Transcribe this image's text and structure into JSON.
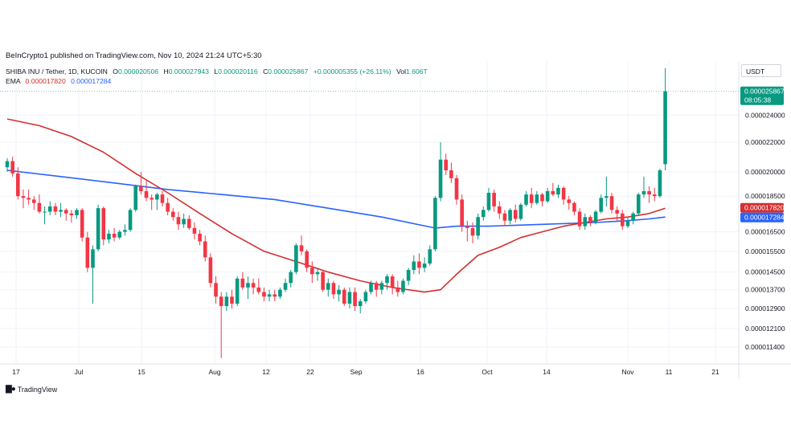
{
  "publisher_line": "BeInCrypto1 published on TradingView.com, Nov 10, 2024 21:24 UTC+5:30",
  "legend": {
    "symbol": "SHIBA INU / Tether, 1D, KUCOIN",
    "o_label": "O",
    "o_value": "0.000020506",
    "h_label": "H",
    "h_value": "0.000027943",
    "l_label": "L",
    "l_value": "0.000020116",
    "c_label": "C",
    "c_value": "0.000025867",
    "change": "+0.000005355 (+26.11%)",
    "vol_label": "Vol",
    "vol_value": "1.606T",
    "ema_label": "EMA",
    "ema1_value": "0.000017820",
    "ema2_value": "0.000017284"
  },
  "currency_label": "USDT",
  "price_tag": {
    "value": "0.000025867",
    "countdown": "08:05:38"
  },
  "ema_tags": {
    "ema1": "0.000017820",
    "ema2": "0.000017284"
  },
  "colors": {
    "up": "#089981",
    "down": "#f23645",
    "ema_fast": "#d32f2f",
    "ema_slow": "#2962ff",
    "grid": "#f0f3fa"
  },
  "logo_text": "TradingView",
  "chart_data": {
    "type": "candlestick",
    "x_ticks": [
      "17",
      "Jul",
      "15",
      "Aug",
      "12",
      "22",
      "Sep",
      "16",
      "Oct",
      "14",
      "Nov",
      "11",
      "21"
    ],
    "y_ticks": [
      "0.000024000",
      "0.000022000",
      "0.000020000",
      "0.000018500",
      "0.000016500",
      "0.000015500",
      "0.000014500",
      "0.000013700",
      "0.000012900",
      "0.000012100",
      "0.000011400"
    ],
    "log_scale": true,
    "grid": true,
    "series": [
      {
        "name": "SHIBA INU / Tether",
        "type": "candlestick",
        "values": [
          [
            2.03e-05,
            2.09e-05,
            2e-05,
            2.07e-05
          ],
          [
            2.07e-05,
            2.1e-05,
            1.97e-05,
            1.99e-05
          ],
          [
            1.99e-05,
            2.03e-05,
            1.83e-05,
            1.85e-05
          ],
          [
            1.85e-05,
            1.89e-05,
            1.78e-05,
            1.84e-05
          ],
          [
            1.84e-05,
            1.89e-05,
            1.8e-05,
            1.83e-05
          ],
          [
            1.83e-05,
            1.85e-05,
            1.77e-05,
            1.81e-05
          ],
          [
            1.81e-05,
            1.86e-05,
            1.75e-05,
            1.76e-05
          ],
          [
            1.76e-05,
            1.79e-05,
            1.69e-05,
            1.76e-05
          ],
          [
            1.76e-05,
            1.82e-05,
            1.74e-05,
            1.79e-05
          ],
          [
            1.79e-05,
            1.81e-05,
            1.74e-05,
            1.76e-05
          ],
          [
            1.76e-05,
            1.81e-05,
            1.73e-05,
            1.77e-05
          ],
          [
            1.77e-05,
            1.78e-05,
            1.71e-05,
            1.75e-05
          ],
          [
            1.75e-05,
            1.77e-05,
            1.7e-05,
            1.74e-05
          ],
          [
            1.74e-05,
            1.78e-05,
            1.72e-05,
            1.77e-05
          ],
          [
            1.77e-05,
            1.78e-05,
            1.6e-05,
            1.62e-05
          ],
          [
            1.62e-05,
            1.65e-05,
            1.45e-05,
            1.47e-05
          ],
          [
            1.47e-05,
            1.58e-05,
            1.31e-05,
            1.56e-05
          ],
          [
            1.56e-05,
            1.8e-05,
            1.55e-05,
            1.78e-05
          ],
          [
            1.78e-05,
            1.79e-05,
            1.58e-05,
            1.61e-05
          ],
          [
            1.61e-05,
            1.66e-05,
            1.59e-05,
            1.64e-05
          ],
          [
            1.64e-05,
            1.67e-05,
            1.6e-05,
            1.62e-05
          ],
          [
            1.62e-05,
            1.66e-05,
            1.61e-05,
            1.65e-05
          ],
          [
            1.65e-05,
            1.69e-05,
            1.63e-05,
            1.66e-05
          ],
          [
            1.66e-05,
            1.78e-05,
            1.65e-05,
            1.77e-05
          ],
          [
            1.77e-05,
            1.92e-05,
            1.76e-05,
            1.91e-05
          ],
          [
            1.91e-05,
            2e-05,
            1.86e-05,
            1.88e-05
          ],
          [
            1.88e-05,
            1.95e-05,
            1.82e-05,
            1.84e-05
          ],
          [
            1.84e-05,
            1.86e-05,
            1.77e-05,
            1.83e-05
          ],
          [
            1.83e-05,
            1.87e-05,
            1.77e-05,
            1.86e-05
          ],
          [
            1.86e-05,
            1.88e-05,
            1.79e-05,
            1.81e-05
          ],
          [
            1.81e-05,
            1.84e-05,
            1.74e-05,
            1.76e-05
          ],
          [
            1.76e-05,
            1.78e-05,
            1.71e-05,
            1.73e-05
          ],
          [
            1.73e-05,
            1.76e-05,
            1.66e-05,
            1.69e-05
          ],
          [
            1.69e-05,
            1.75e-05,
            1.67e-05,
            1.72e-05
          ],
          [
            1.72e-05,
            1.74e-05,
            1.66e-05,
            1.67e-05
          ],
          [
            1.67e-05,
            1.7e-05,
            1.61e-05,
            1.64e-05
          ],
          [
            1.64e-05,
            1.66e-05,
            1.58e-05,
            1.6e-05
          ],
          [
            1.6e-05,
            1.63e-05,
            1.5e-05,
            1.52e-05
          ],
          [
            1.52e-05,
            1.54e-05,
            1.38e-05,
            1.4e-05
          ],
          [
            1.4e-05,
            1.43e-05,
            1.31e-05,
            1.34e-05
          ],
          [
            1.34e-05,
            1.36e-05,
            1.1e-05,
            1.3e-05
          ],
          [
            1.3e-05,
            1.36e-05,
            1.28e-05,
            1.34e-05
          ],
          [
            1.34e-05,
            1.37e-05,
            1.29e-05,
            1.31e-05
          ],
          [
            1.31e-05,
            1.43e-05,
            1.3e-05,
            1.42e-05
          ],
          [
            1.42e-05,
            1.45e-05,
            1.37e-05,
            1.38e-05
          ],
          [
            1.38e-05,
            1.43e-05,
            1.33e-05,
            1.4e-05
          ],
          [
            1.4e-05,
            1.42e-05,
            1.35e-05,
            1.38e-05
          ],
          [
            1.38e-05,
            1.42e-05,
            1.35e-05,
            1.36e-05
          ],
          [
            1.36e-05,
            1.38e-05,
            1.32e-05,
            1.34e-05
          ],
          [
            1.34e-05,
            1.37e-05,
            1.32e-05,
            1.35e-05
          ],
          [
            1.35e-05,
            1.37e-05,
            1.32e-05,
            1.34e-05
          ],
          [
            1.34e-05,
            1.38e-05,
            1.33e-05,
            1.37e-05
          ],
          [
            1.37e-05,
            1.42e-05,
            1.36e-05,
            1.4e-05
          ],
          [
            1.4e-05,
            1.46e-05,
            1.38e-05,
            1.45e-05
          ],
          [
            1.45e-05,
            1.59e-05,
            1.44e-05,
            1.58e-05
          ],
          [
            1.58e-05,
            1.63e-05,
            1.53e-05,
            1.55e-05
          ],
          [
            1.55e-05,
            1.56e-05,
            1.45e-05,
            1.47e-05
          ],
          [
            1.47e-05,
            1.5e-05,
            1.4e-05,
            1.44e-05
          ],
          [
            1.44e-05,
            1.47e-05,
            1.41e-05,
            1.45e-05
          ],
          [
            1.45e-05,
            1.46e-05,
            1.36e-05,
            1.37e-05
          ],
          [
            1.37e-05,
            1.42e-05,
            1.34e-05,
            1.4e-05
          ],
          [
            1.4e-05,
            1.41e-05,
            1.33e-05,
            1.35e-05
          ],
          [
            1.35e-05,
            1.39e-05,
            1.32e-05,
            1.37e-05
          ],
          [
            1.37e-05,
            1.38e-05,
            1.3e-05,
            1.31e-05
          ],
          [
            1.31e-05,
            1.38e-05,
            1.29e-05,
            1.36e-05
          ],
          [
            1.36e-05,
            1.38e-05,
            1.28e-05,
            1.3e-05
          ],
          [
            1.3e-05,
            1.33e-05,
            1.27e-05,
            1.32e-05
          ],
          [
            1.32e-05,
            1.37e-05,
            1.31e-05,
            1.36e-05
          ],
          [
            1.36e-05,
            1.41e-05,
            1.35e-05,
            1.4e-05
          ],
          [
            1.4e-05,
            1.41e-05,
            1.34e-05,
            1.37e-05
          ],
          [
            1.37e-05,
            1.41e-05,
            1.35e-05,
            1.4e-05
          ],
          [
            1.4e-05,
            1.44e-05,
            1.37e-05,
            1.43e-05
          ],
          [
            1.43e-05,
            1.44e-05,
            1.35e-05,
            1.38e-05
          ],
          [
            1.38e-05,
            1.41e-05,
            1.34e-05,
            1.36e-05
          ],
          [
            1.36e-05,
            1.42e-05,
            1.35e-05,
            1.41e-05
          ],
          [
            1.41e-05,
            1.47e-05,
            1.39e-05,
            1.46e-05
          ],
          [
            1.46e-05,
            1.53e-05,
            1.44e-05,
            1.5e-05
          ],
          [
            1.5e-05,
            1.54e-05,
            1.44e-05,
            1.47e-05
          ],
          [
            1.47e-05,
            1.52e-05,
            1.45e-05,
            1.49e-05
          ],
          [
            1.49e-05,
            1.58e-05,
            1.48e-05,
            1.56e-05
          ],
          [
            1.56e-05,
            1.85e-05,
            1.55e-05,
            1.84e-05
          ],
          [
            1.84e-05,
            2.2e-05,
            1.82e-05,
            2.08e-05
          ],
          [
            2.08e-05,
            2.12e-05,
            1.98e-05,
            2.01e-05
          ],
          [
            2.01e-05,
            2.06e-05,
            1.93e-05,
            1.96e-05
          ],
          [
            1.96e-05,
            1.98e-05,
            1.8e-05,
            1.83e-05
          ],
          [
            1.83e-05,
            1.86e-05,
            1.65e-05,
            1.68e-05
          ],
          [
            1.68e-05,
            1.71e-05,
            1.6e-05,
            1.67e-05
          ],
          [
            1.67e-05,
            1.7e-05,
            1.59e-05,
            1.63e-05
          ],
          [
            1.63e-05,
            1.75e-05,
            1.61e-05,
            1.73e-05
          ],
          [
            1.73e-05,
            1.79e-05,
            1.71e-05,
            1.77e-05
          ],
          [
            1.77e-05,
            1.9e-05,
            1.76e-05,
            1.87e-05
          ],
          [
            1.87e-05,
            1.89e-05,
            1.76e-05,
            1.79e-05
          ],
          [
            1.79e-05,
            1.82e-05,
            1.72e-05,
            1.75e-05
          ],
          [
            1.75e-05,
            1.77e-05,
            1.68e-05,
            1.71e-05
          ],
          [
            1.71e-05,
            1.78e-05,
            1.69e-05,
            1.77e-05
          ],
          [
            1.77e-05,
            1.8e-05,
            1.7e-05,
            1.72e-05
          ],
          [
            1.72e-05,
            1.81e-05,
            1.71e-05,
            1.8e-05
          ],
          [
            1.8e-05,
            1.88e-05,
            1.79e-05,
            1.86e-05
          ],
          [
            1.86e-05,
            1.9e-05,
            1.78e-05,
            1.81e-05
          ],
          [
            1.81e-05,
            1.88e-05,
            1.8e-05,
            1.86e-05
          ],
          [
            1.86e-05,
            1.87e-05,
            1.79e-05,
            1.82e-05
          ],
          [
            1.82e-05,
            1.9e-05,
            1.81e-05,
            1.88e-05
          ],
          [
            1.88e-05,
            1.93e-05,
            1.85e-05,
            1.86e-05
          ],
          [
            1.86e-05,
            1.92e-05,
            1.84e-05,
            1.9e-05
          ],
          [
            1.9e-05,
            1.91e-05,
            1.8e-05,
            1.83e-05
          ],
          [
            1.83e-05,
            1.85e-05,
            1.77e-05,
            1.81e-05
          ],
          [
            1.81e-05,
            1.82e-05,
            1.74e-05,
            1.76e-05
          ],
          [
            1.76e-05,
            1.78e-05,
            1.66e-05,
            1.68e-05
          ],
          [
            1.68e-05,
            1.75e-05,
            1.66e-05,
            1.73e-05
          ],
          [
            1.73e-05,
            1.74e-05,
            1.68e-05,
            1.7e-05
          ],
          [
            1.7e-05,
            1.77e-05,
            1.69e-05,
            1.76e-05
          ],
          [
            1.76e-05,
            1.86e-05,
            1.75e-05,
            1.84e-05
          ],
          [
            1.84e-05,
            1.97e-05,
            1.79e-05,
            1.85e-05
          ],
          [
            1.85e-05,
            1.87e-05,
            1.75e-05,
            1.77e-05
          ],
          [
            1.77e-05,
            1.79e-05,
            1.71e-05,
            1.75e-05
          ],
          [
            1.75e-05,
            1.77e-05,
            1.66e-05,
            1.68e-05
          ],
          [
            1.68e-05,
            1.73e-05,
            1.67e-05,
            1.71e-05
          ],
          [
            1.71e-05,
            1.76e-05,
            1.69e-05,
            1.75e-05
          ],
          [
            1.75e-05,
            1.87e-05,
            1.74e-05,
            1.86e-05
          ],
          [
            1.86e-05,
            1.97e-05,
            1.84e-05,
            1.88e-05
          ],
          [
            1.88e-05,
            1.91e-05,
            1.81e-05,
            1.86e-05
          ],
          [
            1.86e-05,
            1.9e-05,
            1.82e-05,
            1.85e-05
          ],
          [
            1.85e-05,
            2.02e-05,
            1.84e-05,
            2.01e-05
          ],
          [
            2.05e-05,
            2.79e-05,
            2.01e-05,
            2.59e-05
          ]
        ]
      },
      {
        "name": "EMA",
        "type": "line",
        "values": [
          [
            0,
            2.37e-05
          ],
          [
            6,
            2.32e-05
          ],
          [
            12,
            2.24e-05
          ],
          [
            18,
            2.13e-05
          ],
          [
            24,
            1.99e-05
          ],
          [
            30,
            1.87e-05
          ],
          [
            36,
            1.75e-05
          ],
          [
            42,
            1.64e-05
          ],
          [
            48,
            1.55e-05
          ],
          [
            54,
            1.5e-05
          ],
          [
            60,
            1.45e-05
          ],
          [
            66,
            1.41e-05
          ],
          [
            72,
            1.38e-05
          ],
          [
            78,
            1.36e-05
          ],
          [
            81,
            1.37e-05
          ],
          [
            84,
            1.44e-05
          ],
          [
            88,
            1.53e-05
          ],
          [
            92,
            1.57e-05
          ],
          [
            96,
            1.62e-05
          ],
          [
            100,
            1.65e-05
          ],
          [
            104,
            1.68e-05
          ],
          [
            108,
            1.7e-05
          ],
          [
            112,
            1.72e-05
          ],
          [
            116,
            1.73e-05
          ],
          [
            120,
            1.75e-05
          ],
          [
            123,
            1.78e-05
          ]
        ]
      },
      {
        "name": "EMA",
        "type": "line",
        "values": [
          [
            0,
            2.01e-05
          ],
          [
            10,
            1.97e-05
          ],
          [
            20,
            1.93e-05
          ],
          [
            30,
            1.89e-05
          ],
          [
            40,
            1.86e-05
          ],
          [
            50,
            1.83e-05
          ],
          [
            60,
            1.78e-05
          ],
          [
            70,
            1.73e-05
          ],
          [
            80,
            1.67e-05
          ],
          [
            84,
            1.68e-05
          ],
          [
            90,
            1.68e-05
          ],
          [
            100,
            1.69e-05
          ],
          [
            110,
            1.7e-05
          ],
          [
            116,
            1.71e-05
          ],
          [
            120,
            1.72e-05
          ],
          [
            123,
            1.73e-05
          ]
        ]
      }
    ]
  }
}
